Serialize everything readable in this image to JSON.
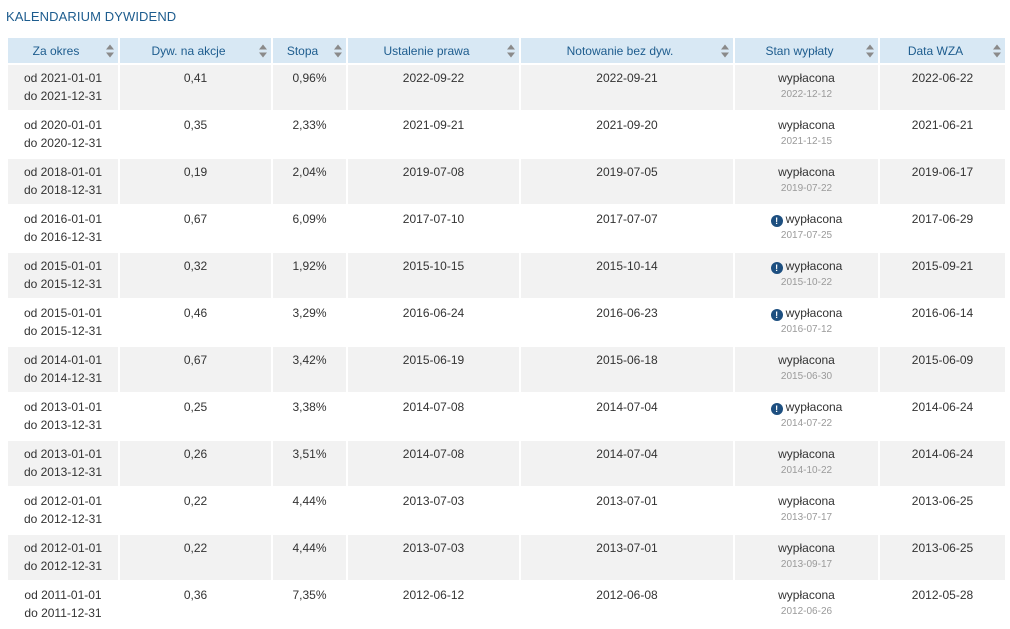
{
  "section_title": "KALENDARIUM DYWIDEND",
  "columns": [
    "Za okres",
    "Dyw. na akcje",
    "Stopa",
    "Ustalenie prawa",
    "Notowanie bez dyw.",
    "Stan wypłaty",
    "Data WZA"
  ],
  "rows": [
    {
      "period_from": "od 2021-01-01",
      "period_to": "do 2021-12-31",
      "dividend": "0,41",
      "yield": "0,96%",
      "record_date": "2022-09-22",
      "ex_date": "2022-09-21",
      "status": "wypłacona",
      "payment_date": "2022-12-12",
      "info": false,
      "agm_date": "2022-06-22"
    },
    {
      "period_from": "od 2020-01-01",
      "period_to": "do 2020-12-31",
      "dividend": "0,35",
      "yield": "2,33%",
      "record_date": "2021-09-21",
      "ex_date": "2021-09-20",
      "status": "wypłacona",
      "payment_date": "2021-12-15",
      "info": false,
      "agm_date": "2021-06-21"
    },
    {
      "period_from": "od 2018-01-01",
      "period_to": "do 2018-12-31",
      "dividend": "0,19",
      "yield": "2,04%",
      "record_date": "2019-07-08",
      "ex_date": "2019-07-05",
      "status": "wypłacona",
      "payment_date": "2019-07-22",
      "info": false,
      "agm_date": "2019-06-17"
    },
    {
      "period_from": "od 2016-01-01",
      "period_to": "do 2016-12-31",
      "dividend": "0,67",
      "yield": "6,09%",
      "record_date": "2017-07-10",
      "ex_date": "2017-07-07",
      "status": "wypłacona",
      "payment_date": "2017-07-25",
      "info": true,
      "agm_date": "2017-06-29"
    },
    {
      "period_from": "od 2015-01-01",
      "period_to": "do 2015-12-31",
      "dividend": "0,32",
      "yield": "1,92%",
      "record_date": "2015-10-15",
      "ex_date": "2015-10-14",
      "status": "wypłacona",
      "payment_date": "2015-10-22",
      "info": true,
      "agm_date": "2015-09-21"
    },
    {
      "period_from": "od 2015-01-01",
      "period_to": "do 2015-12-31",
      "dividend": "0,46",
      "yield": "3,29%",
      "record_date": "2016-06-24",
      "ex_date": "2016-06-23",
      "status": "wypłacona",
      "payment_date": "2016-07-12",
      "info": true,
      "agm_date": "2016-06-14"
    },
    {
      "period_from": "od 2014-01-01",
      "period_to": "do 2014-12-31",
      "dividend": "0,67",
      "yield": "3,42%",
      "record_date": "2015-06-19",
      "ex_date": "2015-06-18",
      "status": "wypłacona",
      "payment_date": "2015-06-30",
      "info": false,
      "agm_date": "2015-06-09"
    },
    {
      "period_from": "od 2013-01-01",
      "period_to": "do 2013-12-31",
      "dividend": "0,25",
      "yield": "3,38%",
      "record_date": "2014-07-08",
      "ex_date": "2014-07-04",
      "status": "wypłacona",
      "payment_date": "2014-07-22",
      "info": true,
      "agm_date": "2014-06-24"
    },
    {
      "period_from": "od 2013-01-01",
      "period_to": "do 2013-12-31",
      "dividend": "0,26",
      "yield": "3,51%",
      "record_date": "2014-07-08",
      "ex_date": "2014-07-04",
      "status": "wypłacona",
      "payment_date": "2014-10-22",
      "info": false,
      "agm_date": "2014-06-24"
    },
    {
      "period_from": "od 2012-01-01",
      "period_to": "do 2012-12-31",
      "dividend": "0,22",
      "yield": "4,44%",
      "record_date": "2013-07-03",
      "ex_date": "2013-07-01",
      "status": "wypłacona",
      "payment_date": "2013-07-17",
      "info": false,
      "agm_date": "2013-06-25"
    },
    {
      "period_from": "od 2012-01-01",
      "period_to": "do 2012-12-31",
      "dividend": "0,22",
      "yield": "4,44%",
      "record_date": "2013-07-03",
      "ex_date": "2013-07-01",
      "status": "wypłacona",
      "payment_date": "2013-09-17",
      "info": false,
      "agm_date": "2013-06-25"
    },
    {
      "period_from": "od 2011-01-01",
      "period_to": "do 2011-12-31",
      "dividend": "0,36",
      "yield": "7,35%",
      "record_date": "2012-06-12",
      "ex_date": "2012-06-08",
      "status": "wypłacona",
      "payment_date": "2012-06-26",
      "info": false,
      "agm_date": "2012-05-28"
    }
  ],
  "icons": {
    "info": "info-circle-icon",
    "sort": "sort-arrows-icon"
  },
  "colors": {
    "title": "#1d5c8e",
    "header_bg": "#d8e8f4",
    "row_alt_bg": "#f2f2f2",
    "info_icon": "#1d4f80"
  }
}
